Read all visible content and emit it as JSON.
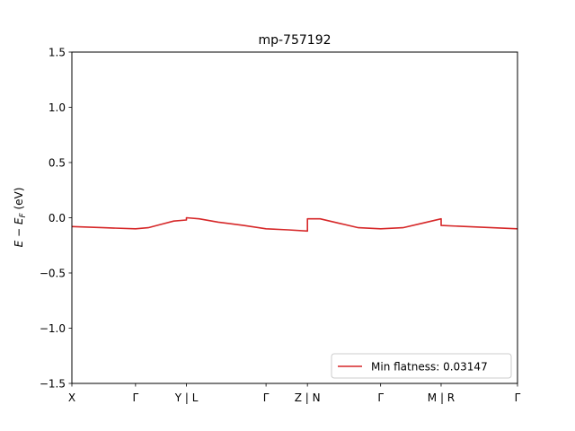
{
  "chart_data": {
    "type": "line",
    "title": "mp-757192",
    "ylabel": "E − E_F (eV)",
    "ylabel_parts": {
      "main": "E − E",
      "sub": "F",
      "tail": " (eV)"
    },
    "ylim": [
      -1.5,
      1.5
    ],
    "yticks": [
      1.5,
      1.0,
      0.5,
      0.0,
      -0.5,
      -1.0,
      -1.5
    ],
    "ytick_labels": [
      "1.5",
      "1.0",
      "0.5",
      "0.0",
      "−0.5",
      "−1.0",
      "−1.5"
    ],
    "xlim": [
      0,
      7
    ],
    "xticks": [
      0,
      1,
      1.8,
      3.05,
      3.7,
      4.85,
      5.8,
      7
    ],
    "xtick_labels": [
      "X",
      "Γ",
      "Y | L",
      "Γ",
      "Z | N",
      "Γ",
      "M | R",
      "Γ"
    ],
    "grid": false,
    "legend_position": "lower-right",
    "series": [
      {
        "name": "Min flatness: 0.03147",
        "color": "#d62728",
        "x": [
          0,
          0.5,
          1,
          1.2,
          1.4,
          1.6,
          1.8,
          1.8,
          2.0,
          2.3,
          2.7,
          3.05,
          3.4,
          3.7,
          3.7,
          3.9,
          4.2,
          4.5,
          4.85,
          5.2,
          5.5,
          5.8,
          5.8,
          6.2,
          6.6,
          7
        ],
        "y": [
          -0.08,
          -0.09,
          -0.1,
          -0.09,
          -0.06,
          -0.03,
          -0.02,
          0.0,
          -0.01,
          -0.04,
          -0.07,
          -0.1,
          -0.11,
          -0.12,
          -0.01,
          -0.01,
          -0.05,
          -0.09,
          -0.1,
          -0.09,
          -0.05,
          -0.01,
          -0.07,
          -0.08,
          -0.09,
          -0.1
        ]
      }
    ]
  }
}
